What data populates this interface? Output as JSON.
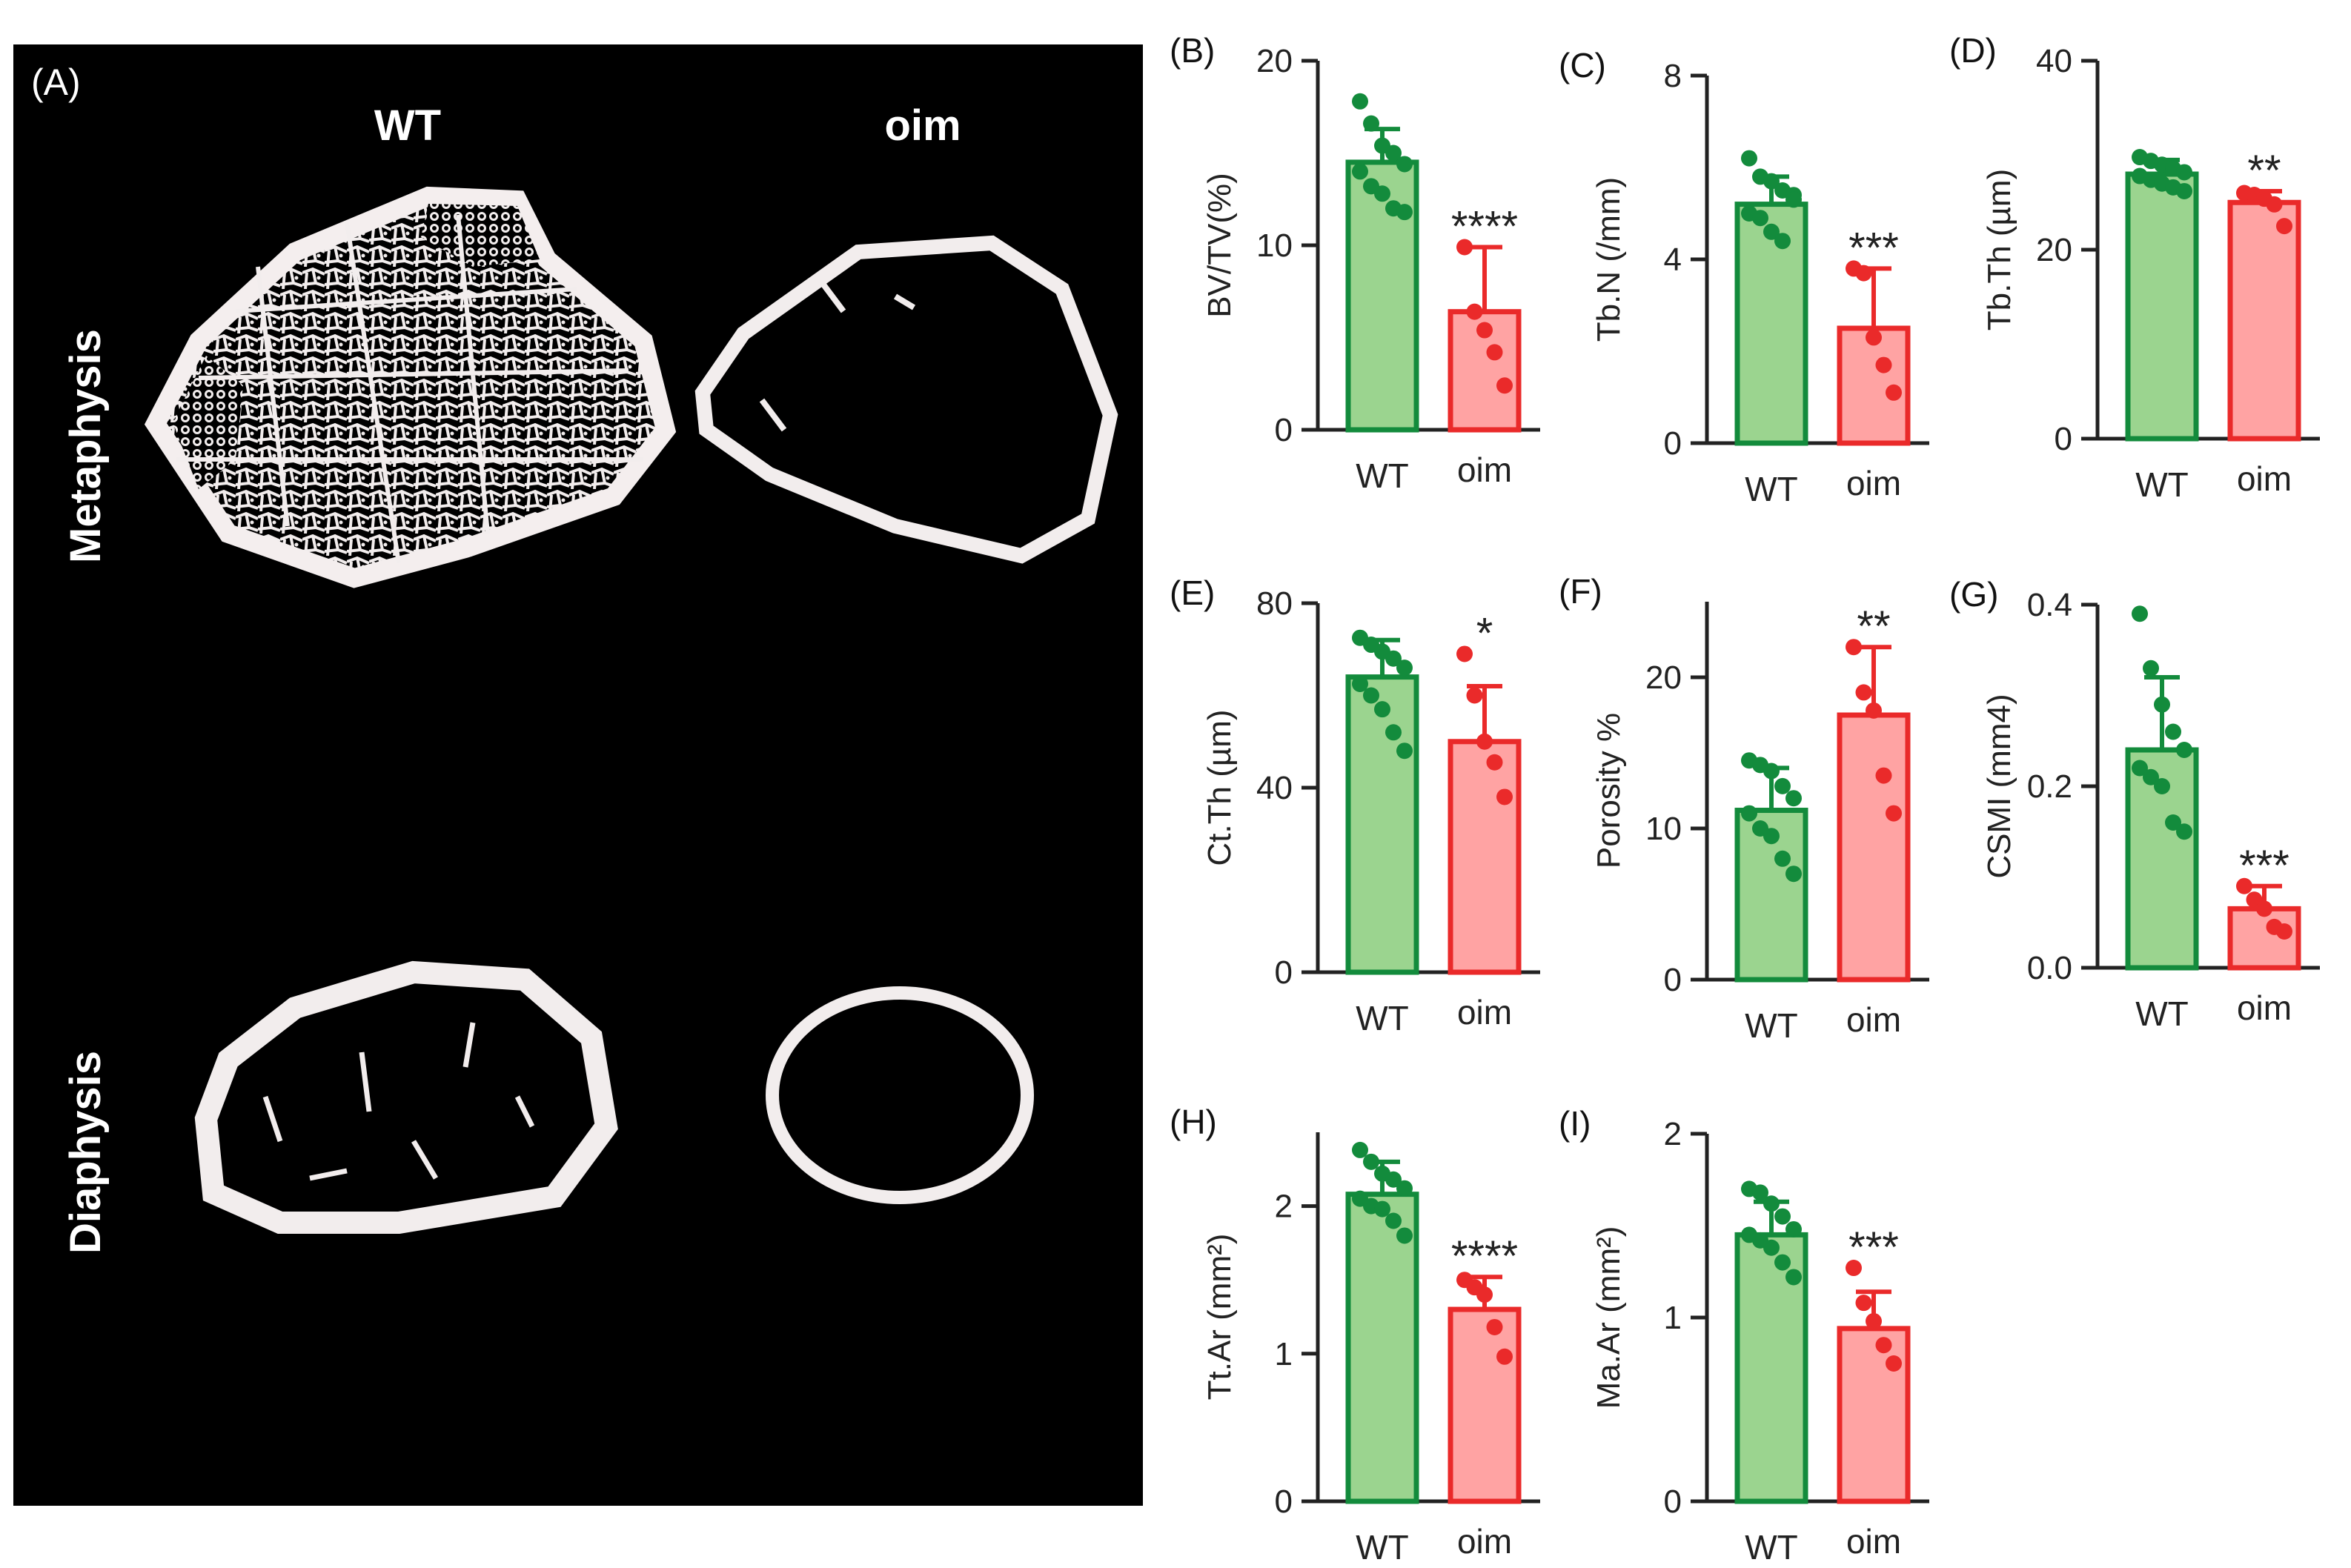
{
  "image_panel": {
    "label": "(A)",
    "columns": [
      "WT",
      "oim"
    ],
    "rows": [
      "Metaphysis",
      "Diaphysis"
    ]
  },
  "colors": {
    "wt_fill": "#9bd48f",
    "wt_stroke": "#138b3c",
    "oim_fill": "#ffa3a3",
    "oim_stroke": "#ea2a2a",
    "axis": "#222222"
  },
  "chart_data": [
    {
      "panel": "(B)",
      "type": "bar",
      "ylabel": "BV/TV(%)",
      "categories": [
        "WT",
        "oim"
      ],
      "ylim": [
        0,
        20
      ],
      "yticks": [
        0,
        10,
        20
      ],
      "values": [
        14.5,
        6.4
      ],
      "errors": [
        1.8,
        3.5
      ],
      "points": [
        [
          17.8,
          16.6,
          15.4,
          15.0,
          14.4,
          14.0,
          13.2,
          12.8,
          12.0,
          11.8
        ],
        [
          9.9,
          6.4,
          5.4,
          4.2,
          2.4
        ]
      ],
      "significance": "****"
    },
    {
      "panel": "(C)",
      "type": "bar",
      "ylabel": "Tb.N (/mm)",
      "categories": [
        "WT",
        "oim"
      ],
      "ylim": [
        0,
        8
      ],
      "yticks": [
        0,
        4,
        8
      ],
      "values": [
        5.2,
        2.5
      ],
      "errors": [
        0.6,
        1.3
      ],
      "points": [
        [
          6.2,
          5.8,
          5.7,
          5.5,
          5.4,
          5.0,
          4.9,
          4.6,
          4.4,
          5.3
        ],
        [
          3.8,
          3.7,
          2.3,
          1.7,
          1.1
        ]
      ],
      "significance": "***"
    },
    {
      "panel": "(D)",
      "type": "bar",
      "ylabel": "Tb.Th (µm)",
      "categories": [
        "WT",
        "oim"
      ],
      "ylim": [
        0,
        40
      ],
      "yticks": [
        0,
        20,
        40
      ],
      "values": [
        28.0,
        25.0
      ],
      "errors": [
        1.5,
        1.2
      ],
      "points": [
        [
          29.8,
          29.4,
          29.0,
          28.6,
          28.2,
          27.8,
          27.4,
          27.0,
          26.6,
          26.2
        ],
        [
          26.0,
          25.8,
          25.4,
          24.8,
          22.5
        ]
      ],
      "significance": "**"
    },
    {
      "panel": "(E)",
      "type": "bar",
      "ylabel": "Ct.Th (µm)",
      "categories": [
        "WT",
        "oim"
      ],
      "ylim": [
        0,
        80
      ],
      "yticks": [
        0,
        40,
        80
      ],
      "values": [
        64,
        50
      ],
      "errors": [
        8,
        12
      ],
      "points": [
        [
          72.5,
          71.0,
          69.5,
          68.0,
          66.0,
          62.5,
          60.0,
          57.0,
          52.0,
          48.0
        ],
        [
          69.0,
          60.0,
          50.0,
          45.5,
          38.0
        ]
      ],
      "significance": "*"
    },
    {
      "panel": "(F)",
      "type": "bar",
      "ylabel": "Porosity %",
      "categories": [
        "WT",
        "oim"
      ],
      "ylim": [
        0,
        25
      ],
      "yticks": [
        0,
        10,
        20
      ],
      "values": [
        11.2,
        17.5
      ],
      "errors": [
        2.8,
        4.5
      ],
      "points": [
        [
          14.5,
          14.2,
          13.8,
          12.8,
          12.0,
          11.0,
          10.0,
          9.5,
          8.0,
          7.0
        ],
        [
          22.0,
          19.0,
          17.8,
          13.5,
          11.0
        ]
      ],
      "significance": "**"
    },
    {
      "panel": "(G)",
      "type": "bar",
      "ylabel": "CSMI (mm4)",
      "categories": [
        "WT",
        "oim"
      ],
      "ylim": [
        0,
        0.4
      ],
      "yticks": [
        0.0,
        0.2,
        0.4
      ],
      "values": [
        0.24,
        0.065
      ],
      "errors": [
        0.08,
        0.025
      ],
      "points": [
        [
          0.39,
          0.33,
          0.29,
          0.26,
          0.24,
          0.22,
          0.21,
          0.2,
          0.16,
          0.15
        ],
        [
          0.09,
          0.075,
          0.065,
          0.045,
          0.04
        ]
      ],
      "significance": "***"
    },
    {
      "panel": "(H)",
      "type": "bar",
      "ylabel": "Tt.Ar (mm²)",
      "categories": [
        "WT",
        "oim"
      ],
      "ylim": [
        0,
        2.5
      ],
      "yticks": [
        0,
        1,
        2
      ],
      "values": [
        2.08,
        1.3
      ],
      "errors": [
        0.22,
        0.22
      ],
      "points": [
        [
          2.38,
          2.3,
          2.22,
          2.18,
          2.12,
          2.05,
          2.0,
          1.98,
          1.9,
          1.8
        ],
        [
          1.5,
          1.45,
          1.4,
          1.18,
          0.98
        ]
      ],
      "significance": "****"
    },
    {
      "panel": "(I)",
      "type": "bar",
      "ylabel": "Ma.Ar (mm²)",
      "categories": [
        "WT",
        "oim"
      ],
      "ylim": [
        0,
        2
      ],
      "yticks": [
        0,
        1,
        2
      ],
      "values": [
        1.45,
        0.94
      ],
      "errors": [
        0.18,
        0.2
      ],
      "points": [
        [
          1.7,
          1.68,
          1.62,
          1.55,
          1.48,
          1.45,
          1.42,
          1.38,
          1.3,
          1.22
        ],
        [
          1.27,
          1.08,
          0.98,
          0.85,
          0.75
        ]
      ],
      "significance": "***"
    }
  ]
}
